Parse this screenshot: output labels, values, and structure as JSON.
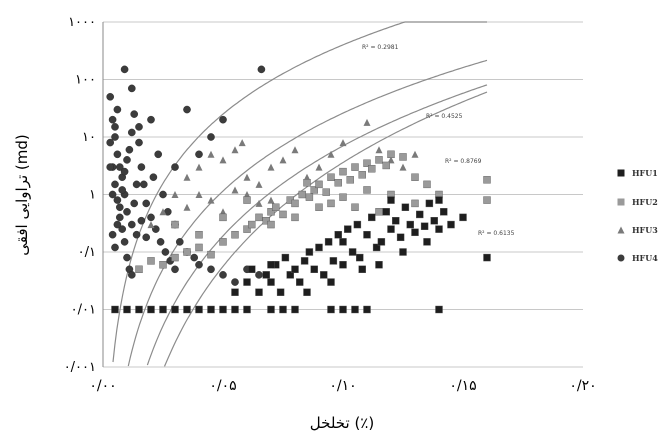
{
  "chart_data": {
    "type": "scatter",
    "y_scale": "log",
    "xlim": [
      0,
      0.2
    ],
    "ylim": [
      0.001,
      1000
    ],
    "x_tick_labels": [
      "۰/۰۰",
      "۰/۰۵",
      "۰/۱۰",
      "۰/۱۵",
      "۰/۲۰"
    ],
    "y_tick_labels": [
      "۱۰۰۰",
      "۱۰۰",
      "۱۰",
      "۱",
      "۰/۱",
      "۰/۰۱",
      "۰/۰۰۱"
    ],
    "xlabel": "تخلخل (٪)",
    "ylabel": "تراوایی افقی (md)",
    "grid": "horizontal",
    "legend_position": "right",
    "series": [
      {
        "name": "HFU1",
        "marker": "square",
        "color": "#1e1e1e",
        "fit_label": "R² = 0.6135",
        "fit": {
          "a": 3.6,
          "b": 6.0
        },
        "points": [
          [
            0.005,
            0.01
          ],
          [
            0.01,
            0.01
          ],
          [
            0.015,
            0.01
          ],
          [
            0.02,
            0.01
          ],
          [
            0.025,
            0.01
          ],
          [
            0.03,
            0.01
          ],
          [
            0.035,
            0.01
          ],
          [
            0.04,
            0.01
          ],
          [
            0.045,
            0.01
          ],
          [
            0.05,
            0.01
          ],
          [
            0.055,
            0.01
          ],
          [
            0.06,
            0.01
          ],
          [
            0.07,
            0.01
          ],
          [
            0.075,
            0.01
          ],
          [
            0.08,
            0.01
          ],
          [
            0.095,
            0.01
          ],
          [
            0.1,
            0.01
          ],
          [
            0.105,
            0.01
          ],
          [
            0.11,
            0.01
          ],
          [
            0.14,
            0.01
          ],
          [
            0.055,
            0.02
          ],
          [
            0.06,
            0.03
          ],
          [
            0.062,
            0.05
          ],
          [
            0.065,
            0.02
          ],
          [
            0.068,
            0.04
          ],
          [
            0.07,
            0.03
          ],
          [
            0.072,
            0.06
          ],
          [
            0.074,
            0.02
          ],
          [
            0.076,
            0.08
          ],
          [
            0.078,
            0.04
          ],
          [
            0.08,
            0.05
          ],
          [
            0.082,
            0.03
          ],
          [
            0.084,
            0.07
          ],
          [
            0.086,
            0.1
          ],
          [
            0.088,
            0.05
          ],
          [
            0.09,
            0.12
          ],
          [
            0.092,
            0.04
          ],
          [
            0.094,
            0.15
          ],
          [
            0.096,
            0.07
          ],
          [
            0.098,
            0.2
          ],
          [
            0.1,
            0.06
          ],
          [
            0.102,
            0.25
          ],
          [
            0.104,
            0.1
          ],
          [
            0.106,
            0.3
          ],
          [
            0.108,
            0.05
          ],
          [
            0.11,
            0.2
          ],
          [
            0.112,
            0.4
          ],
          [
            0.114,
            0.12
          ],
          [
            0.116,
            0.15
          ],
          [
            0.118,
            0.5
          ],
          [
            0.12,
            0.25
          ],
          [
            0.122,
            0.35
          ],
          [
            0.124,
            0.18
          ],
          [
            0.126,
            0.6
          ],
          [
            0.128,
            0.3
          ],
          [
            0.13,
            0.22
          ],
          [
            0.132,
            0.45
          ],
          [
            0.134,
            0.28
          ],
          [
            0.136,
            0.7
          ],
          [
            0.138,
            0.35
          ],
          [
            0.14,
            0.25
          ],
          [
            0.142,
            0.5
          ],
          [
            0.145,
            0.3
          ],
          [
            0.15,
            0.4
          ],
          [
            0.16,
            0.08
          ],
          [
            0.07,
            0.06
          ],
          [
            0.085,
            0.02
          ],
          [
            0.095,
            0.03
          ],
          [
            0.1,
            0.15
          ],
          [
            0.107,
            0.08
          ],
          [
            0.115,
            0.06
          ],
          [
            0.125,
            0.1
          ],
          [
            0.135,
            0.15
          ],
          [
            0.14,
            0.8
          ],
          [
            0.12,
            0.8
          ]
        ]
      },
      {
        "name": "HFU2",
        "marker": "square",
        "color": "#9a9a9a",
        "fit_label": "R² = 0.8769",
        "fit": {
          "a": 7.0,
          "b": 5.2
        },
        "points": [
          [
            0.015,
            0.05
          ],
          [
            0.02,
            0.07
          ],
          [
            0.025,
            0.06
          ],
          [
            0.03,
            0.08
          ],
          [
            0.035,
            0.1
          ],
          [
            0.04,
            0.12
          ],
          [
            0.045,
            0.09
          ],
          [
            0.05,
            0.15
          ],
          [
            0.055,
            0.2
          ],
          [
            0.06,
            0.25
          ],
          [
            0.062,
            0.3
          ],
          [
            0.065,
            0.4
          ],
          [
            0.068,
            0.35
          ],
          [
            0.07,
            0.5
          ],
          [
            0.072,
            0.6
          ],
          [
            0.075,
            0.45
          ],
          [
            0.078,
            0.8
          ],
          [
            0.08,
            0.7
          ],
          [
            0.083,
            1.0
          ],
          [
            0.086,
            0.9
          ],
          [
            0.088,
            1.2
          ],
          [
            0.09,
            1.5
          ],
          [
            0.093,
            1.1
          ],
          [
            0.095,
            2.0
          ],
          [
            0.098,
            1.6
          ],
          [
            0.1,
            2.5
          ],
          [
            0.103,
            1.8
          ],
          [
            0.105,
            3.0
          ],
          [
            0.108,
            2.2
          ],
          [
            0.11,
            3.5
          ],
          [
            0.112,
            2.8
          ],
          [
            0.115,
            4.0
          ],
          [
            0.118,
            3.2
          ],
          [
            0.12,
            5.0
          ],
          [
            0.125,
            4.5
          ],
          [
            0.13,
            2.0
          ],
          [
            0.135,
            1.5
          ],
          [
            0.14,
            1.0
          ],
          [
            0.16,
            1.8
          ],
          [
            0.16,
            0.8
          ],
          [
            0.05,
            0.4
          ],
          [
            0.06,
            0.8
          ],
          [
            0.07,
            0.3
          ],
          [
            0.08,
            0.4
          ],
          [
            0.09,
            0.6
          ],
          [
            0.1,
            0.9
          ],
          [
            0.11,
            1.2
          ],
          [
            0.12,
            1.0
          ],
          [
            0.13,
            0.7
          ],
          [
            0.085,
            1.6
          ],
          [
            0.095,
            0.7
          ],
          [
            0.105,
            0.6
          ],
          [
            0.115,
            0.5
          ],
          [
            0.03,
            0.3
          ],
          [
            0.04,
            0.2
          ]
        ]
      },
      {
        "name": "HFU3",
        "marker": "triangle",
        "color": "#7a7a7a",
        "fit_label": "R² = 0.4525",
        "fit": {
          "a": 26,
          "b": 4.5
        },
        "points": [
          [
            0.02,
            0.3
          ],
          [
            0.025,
            0.5
          ],
          [
            0.03,
            1.0
          ],
          [
            0.035,
            2.0
          ],
          [
            0.04,
            3.0
          ],
          [
            0.045,
            5.0
          ],
          [
            0.05,
            4.0
          ],
          [
            0.055,
            6.0
          ],
          [
            0.058,
            8.0
          ],
          [
            0.06,
            2.0
          ],
          [
            0.065,
            1.5
          ],
          [
            0.07,
            3.0
          ],
          [
            0.075,
            4.0
          ],
          [
            0.08,
            6.0
          ],
          [
            0.085,
            2.0
          ],
          [
            0.09,
            3.0
          ],
          [
            0.095,
            5.0
          ],
          [
            0.1,
            8.0
          ],
          [
            0.105,
            3.0
          ],
          [
            0.11,
            18.0
          ],
          [
            0.115,
            6.0
          ],
          [
            0.12,
            4.0
          ],
          [
            0.125,
            3.0
          ],
          [
            0.13,
            5.0
          ],
          [
            0.04,
            1.0
          ],
          [
            0.05,
            0.5
          ],
          [
            0.06,
            1.0
          ],
          [
            0.07,
            0.8
          ],
          [
            0.035,
            0.6
          ],
          [
            0.045,
            0.8
          ],
          [
            0.055,
            1.2
          ],
          [
            0.065,
            0.7
          ]
        ]
      },
      {
        "name": "HFU4",
        "marker": "circle",
        "color": "#3c3c3c",
        "fit_label": "R² = 0.2981",
        "fit": {
          "a": 400,
          "b": 4.0
        },
        "points": [
          [
            0.003,
            50
          ],
          [
            0.004,
            20
          ],
          [
            0.005,
            10
          ],
          [
            0.006,
            5
          ],
          [
            0.007,
            3
          ],
          [
            0.008,
            2
          ],
          [
            0.009,
            1
          ],
          [
            0.01,
            0.5
          ],
          [
            0.012,
            0.3
          ],
          [
            0.014,
            0.2
          ],
          [
            0.003,
            8
          ],
          [
            0.004,
            3
          ],
          [
            0.005,
            1.5
          ],
          [
            0.006,
            0.8
          ],
          [
            0.007,
            0.4
          ],
          [
            0.008,
            0.25
          ],
          [
            0.009,
            0.15
          ],
          [
            0.01,
            0.08
          ],
          [
            0.011,
            0.05
          ],
          [
            0.012,
            0.04
          ],
          [
            0.004,
            0.2
          ],
          [
            0.005,
            0.12
          ],
          [
            0.006,
            0.3
          ],
          [
            0.007,
            0.6
          ],
          [
            0.008,
            1.2
          ],
          [
            0.009,
            2.5
          ],
          [
            0.01,
            4
          ],
          [
            0.011,
            6
          ],
          [
            0.012,
            12
          ],
          [
            0.013,
            25
          ],
          [
            0.015,
            8
          ],
          [
            0.016,
            3
          ],
          [
            0.017,
            1.5
          ],
          [
            0.018,
            0.7
          ],
          [
            0.02,
            0.4
          ],
          [
            0.022,
            0.25
          ],
          [
            0.024,
            0.15
          ],
          [
            0.026,
            0.1
          ],
          [
            0.028,
            0.07
          ],
          [
            0.03,
            0.05
          ],
          [
            0.013,
            0.7
          ],
          [
            0.014,
            1.5
          ],
          [
            0.016,
            0.35
          ],
          [
            0.018,
            0.18
          ],
          [
            0.021,
            2
          ],
          [
            0.023,
            5
          ],
          [
            0.025,
            1
          ],
          [
            0.027,
            0.5
          ],
          [
            0.03,
            0.3
          ],
          [
            0.032,
            0.15
          ],
          [
            0.035,
            0.1
          ],
          [
            0.038,
            0.08
          ],
          [
            0.04,
            0.06
          ],
          [
            0.045,
            0.05
          ],
          [
            0.05,
            0.04
          ],
          [
            0.055,
            0.03
          ],
          [
            0.06,
            0.05
          ],
          [
            0.065,
            0.04
          ],
          [
            0.009,
            150
          ],
          [
            0.066,
            150
          ],
          [
            0.012,
            70
          ],
          [
            0.035,
            30
          ],
          [
            0.02,
            20
          ],
          [
            0.045,
            10
          ],
          [
            0.05,
            20
          ],
          [
            0.015,
            15
          ],
          [
            0.04,
            5
          ],
          [
            0.03,
            3
          ],
          [
            0.005,
            15
          ],
          [
            0.006,
            30
          ],
          [
            0.003,
            3
          ],
          [
            0.004,
            1
          ]
        ]
      }
    ]
  }
}
